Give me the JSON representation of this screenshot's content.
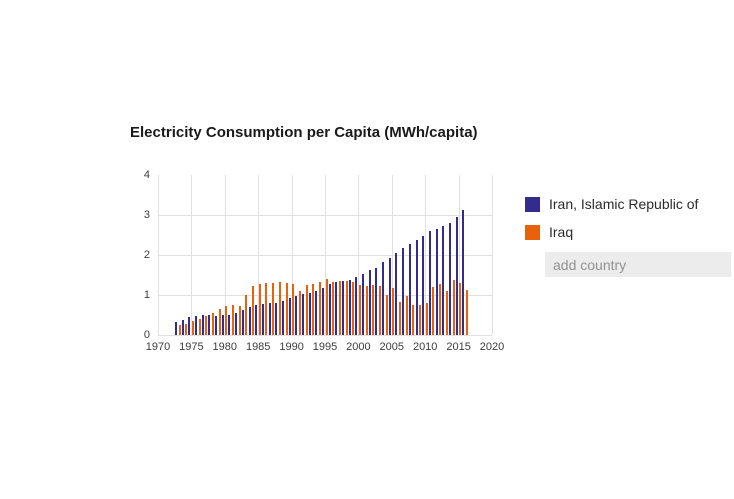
{
  "title": "Electricity Consumption per Capita (MWh/capita)",
  "legend": {
    "items": [
      {
        "label": "Iran, Islamic Republic of",
        "color": "#332c8c"
      },
      {
        "label": "Iraq",
        "color": "#e8610d"
      }
    ],
    "add_country_placeholder": "add country"
  },
  "colors": {
    "iran": "#332c8c",
    "iraq": "#e8610d",
    "gridline": "#e0e0e0",
    "input_background": "#ececec"
  },
  "chart_data": {
    "type": "bar",
    "title": "Electricity Consumption per Capita (MWh/capita)",
    "xlabel": "",
    "ylabel": "",
    "xlim": [
      1970,
      2020
    ],
    "ylim": [
      0,
      4
    ],
    "x_ticks": [
      1970,
      1975,
      1980,
      1985,
      1990,
      1995,
      2000,
      2005,
      2010,
      2015,
      2020
    ],
    "y_ticks": [
      0,
      1,
      2,
      3,
      4
    ],
    "grid": true,
    "legend_position": "right",
    "x": [
      1973,
      1974,
      1975,
      1976,
      1977,
      1978,
      1979,
      1980,
      1981,
      1982,
      1983,
      1984,
      1985,
      1986,
      1987,
      1988,
      1989,
      1990,
      1991,
      1992,
      1993,
      1994,
      1995,
      1996,
      1997,
      1998,
      1999,
      2000,
      2001,
      2002,
      2003,
      2004,
      2005,
      2006,
      2007,
      2008,
      2009,
      2010,
      2011,
      2012,
      2013,
      2014,
      2015,
      2016
    ],
    "series": [
      {
        "name": "Iran, Islamic Republic of",
        "color": "#332c8c",
        "values": [
          0.33,
          0.38,
          0.44,
          0.47,
          0.5,
          0.5,
          0.48,
          0.5,
          0.5,
          0.56,
          0.62,
          0.69,
          0.75,
          0.78,
          0.81,
          0.8,
          0.85,
          0.92,
          0.98,
          1.02,
          1.04,
          1.1,
          1.18,
          1.28,
          1.32,
          1.35,
          1.37,
          1.46,
          1.52,
          1.62,
          1.68,
          1.82,
          1.92,
          2.05,
          2.18,
          2.28,
          2.38,
          2.47,
          2.6,
          2.65,
          2.73,
          2.8,
          2.96,
          3.12
        ]
      },
      {
        "name": "Iraq",
        "color": "#e8610d",
        "values": [
          0.25,
          0.28,
          0.36,
          0.4,
          0.47,
          0.56,
          0.64,
          0.73,
          0.75,
          0.72,
          1.0,
          1.22,
          1.27,
          1.29,
          1.31,
          1.33,
          1.31,
          1.27,
          1.1,
          1.25,
          1.28,
          1.33,
          1.4,
          1.33,
          1.34,
          1.35,
          1.32,
          1.26,
          1.22,
          1.26,
          1.22,
          1.0,
          1.18,
          0.82,
          0.97,
          0.74,
          0.75,
          0.8,
          1.2,
          1.28,
          1.1,
          1.38,
          1.3,
          1.13
        ]
      }
    ]
  }
}
